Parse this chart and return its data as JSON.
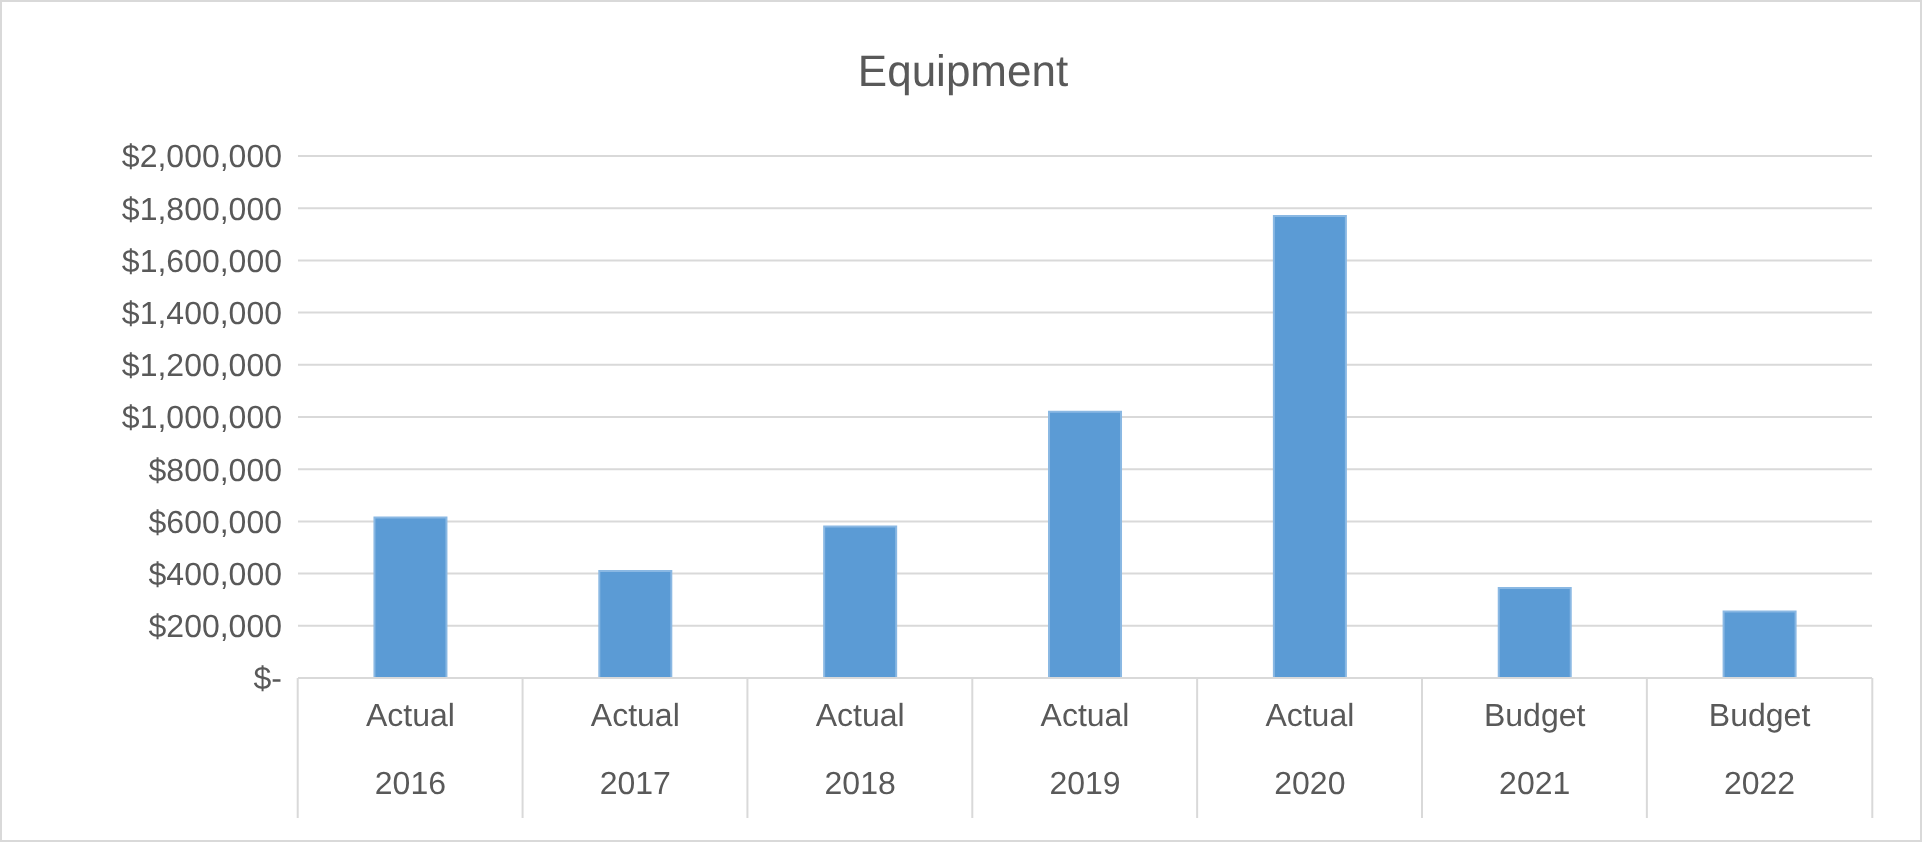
{
  "chart_data": {
    "type": "bar",
    "title": "Equipment",
    "categories": [
      "Actual\n2016",
      "Actual\n2017",
      "Actual\n2018",
      "Actual\n2019",
      "Actual\n2020",
      "Budget\n2021",
      "Budget\n2022"
    ],
    "values": [
      615000,
      410000,
      580000,
      1020000,
      1770000,
      345000,
      255000
    ],
    "color": "#5b9bd5",
    "ylim": [
      0,
      2000000
    ],
    "yticks": [
      {
        "value": 0,
        "label": "$-"
      },
      {
        "value": 200000,
        "label": "$200,000"
      },
      {
        "value": 400000,
        "label": "$400,000"
      },
      {
        "value": 600000,
        "label": "$600,000"
      },
      {
        "value": 800000,
        "label": "$800,000"
      },
      {
        "value": 1000000,
        "label": "$1,000,000"
      },
      {
        "value": 1200000,
        "label": "$1,200,000"
      },
      {
        "value": 1400000,
        "label": "$1,400,000"
      },
      {
        "value": 1600000,
        "label": "$1,600,000"
      },
      {
        "value": 1800000,
        "label": "$1,800,000"
      },
      {
        "value": 2000000,
        "label": "$2,000,000"
      }
    ],
    "grid": "y",
    "legend": false
  }
}
